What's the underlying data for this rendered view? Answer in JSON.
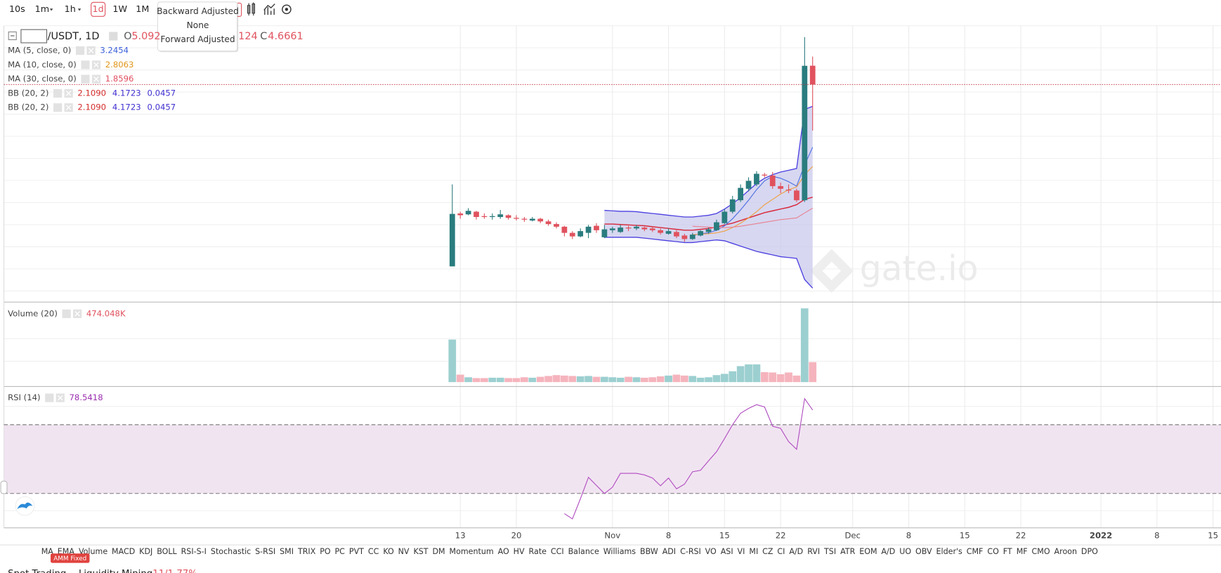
{
  "toolbar": {
    "intervals": [
      "10s",
      "1m",
      "1h",
      "1d",
      "1W",
      "1M"
    ],
    "active": "1d"
  },
  "adjust_menu": [
    "Backward Adjusted",
    "None",
    "Forward Adjusted"
  ],
  "legend": {
    "symbol": "/USDT, 1D",
    "open_label": "O",
    "open": "5.092",
    "low_fragment": "124",
    "close_label": "C",
    "close": "4.6661",
    "rows": [
      {
        "label": "MA (5, close, 0)",
        "values": [
          "3.2454"
        ],
        "colors": [
          "#3a5fd9"
        ]
      },
      {
        "label": "MA (10, close, 0)",
        "values": [
          "2.8063"
        ],
        "colors": [
          "#e0961a"
        ]
      },
      {
        "label": "MA (30, close, 0)",
        "values": [
          "1.8596"
        ],
        "colors": [
          "#e05060"
        ]
      },
      {
        "label": "BB (20, 2)",
        "values": [
          "2.1090",
          "4.1723",
          "0.0457"
        ],
        "colors": [
          "#d42a2a",
          "#4030d0",
          "#4030d0"
        ]
      },
      {
        "label": "BB (20, 2)",
        "values": [
          "2.1090",
          "4.1723",
          "0.0457"
        ],
        "colors": [
          "#d42a2a",
          "#4030d0",
          "#4030d0"
        ]
      }
    ],
    "volume": {
      "label": "Volume (20)",
      "value": "474.048K"
    },
    "rsi": {
      "label": "RSI (14)",
      "value": "78.5418"
    }
  },
  "watermark": "gate.io",
  "indicator_tabs": [
    "MA",
    "EMA",
    "Volume",
    "MACD",
    "KDJ",
    "BOLL",
    "RSI-S-I",
    "Stochastic",
    "S-RSI",
    "SMI",
    "TRIX",
    "PO",
    "PC",
    "PVT",
    "CC",
    "KO",
    "NV",
    "KST",
    "DM",
    "Momentum",
    "AO",
    "HV",
    "Rate",
    "CCI",
    "Balance",
    "Williams",
    "BBW",
    "ADI",
    "C-RSI",
    "VO",
    "ASI",
    "VI",
    "MI",
    "CZ",
    "CI",
    "A/D",
    "RVI",
    "TSI",
    "ATR",
    "EOM",
    "A/D",
    "UO",
    "OBV",
    "Elder's",
    "CMF",
    "CO",
    "FT",
    "MF",
    "CMO",
    "Aroon",
    "DPO"
  ],
  "badge": "AMM Fixed",
  "bottom_tabs": {
    "spot": "Spot Trading",
    "mining": "Liquidity Mining",
    "mining_rate": "11/1.77%"
  },
  "chart_data": {
    "type": "candlestick",
    "x": [
      "2021-10-12",
      "2021-10-13",
      "2021-10-14",
      "2021-10-15",
      "2021-10-16",
      "2021-10-17",
      "2021-10-18",
      "2021-10-19",
      "2021-10-20",
      "2021-10-21",
      "2021-10-22",
      "2021-10-23",
      "2021-10-24",
      "2021-10-25",
      "2021-10-26",
      "2021-10-27",
      "2021-10-28",
      "2021-10-29",
      "2021-10-30",
      "2021-10-31",
      "2021-11-01",
      "2021-11-02",
      "2021-11-03",
      "2021-11-04",
      "2021-11-05",
      "2021-11-06",
      "2021-11-07",
      "2021-11-08",
      "2021-11-09",
      "2021-11-10",
      "2021-11-11",
      "2021-11-12",
      "2021-11-13",
      "2021-11-14",
      "2021-11-15",
      "2021-11-16",
      "2021-11-17",
      "2021-11-18",
      "2021-11-19",
      "2021-11-20",
      "2021-11-21",
      "2021-11-22",
      "2021-11-23",
      "2021-11-24",
      "2021-11-25",
      "2021-11-26"
    ],
    "open": [
      0.54,
      1.74,
      1.72,
      1.78,
      1.68,
      1.66,
      1.66,
      1.7,
      1.64,
      1.62,
      1.58,
      1.62,
      1.56,
      1.5,
      1.44,
      1.3,
      1.22,
      1.3,
      1.46,
      1.2,
      1.36,
      1.32,
      1.42,
      1.4,
      1.42,
      1.4,
      1.36,
      1.28,
      1.32,
      1.24,
      1.16,
      1.24,
      1.32,
      1.36,
      1.52,
      1.78,
      2.04,
      2.3,
      2.4,
      2.62,
      2.6,
      2.36,
      2.28,
      2.26,
      2.04,
      5.092
    ],
    "high": [
      2.4,
      1.78,
      1.86,
      1.8,
      1.74,
      1.74,
      1.82,
      1.72,
      1.7,
      1.66,
      1.66,
      1.64,
      1.6,
      1.54,
      1.46,
      1.34,
      1.4,
      1.48,
      1.52,
      1.48,
      1.44,
      1.48,
      1.46,
      1.48,
      1.44,
      1.44,
      1.4,
      1.4,
      1.36,
      1.28,
      1.3,
      1.36,
      1.42,
      1.6,
      1.84,
      2.14,
      2.4,
      2.56,
      2.7,
      2.66,
      2.68,
      2.44,
      2.4,
      2.3,
      5.74,
      5.3
    ],
    "low": [
      0.54,
      1.62,
      1.7,
      1.6,
      1.62,
      1.6,
      1.62,
      1.6,
      1.58,
      1.55,
      1.56,
      1.52,
      1.46,
      1.4,
      1.22,
      1.16,
      1.2,
      1.18,
      1.3,
      1.18,
      1.3,
      1.3,
      1.34,
      1.36,
      1.34,
      1.32,
      1.26,
      1.26,
      1.18,
      1.1,
      1.14,
      1.22,
      1.28,
      1.34,
      1.5,
      1.74,
      2.0,
      2.24,
      2.36,
      2.56,
      2.3,
      2.2,
      2.2,
      2.0,
      2.0,
      3.62
    ],
    "close": [
      1.73,
      1.7,
      1.8,
      1.66,
      1.66,
      1.68,
      1.72,
      1.64,
      1.62,
      1.6,
      1.62,
      1.56,
      1.5,
      1.44,
      1.3,
      1.22,
      1.34,
      1.44,
      1.36,
      1.38,
      1.4,
      1.42,
      1.4,
      1.44,
      1.38,
      1.36,
      1.3,
      1.34,
      1.22,
      1.16,
      1.26,
      1.34,
      1.38,
      1.54,
      1.78,
      2.06,
      2.32,
      2.48,
      2.64,
      2.6,
      2.36,
      2.3,
      2.26,
      2.04,
      5.09,
      4.6661
    ],
    "up_color": "#2a7c7e",
    "down_color": "#e0525e",
    "xlim": [
      "2021-08-17",
      "2022-01-16"
    ],
    "xticks": [
      {
        "value": "2021-10-13",
        "label": "13"
      },
      {
        "value": "2021-10-20",
        "label": "20"
      },
      {
        "value": "2021-11-01",
        "label": "Nov"
      },
      {
        "value": "2021-11-08",
        "label": "8"
      },
      {
        "value": "2021-11-15",
        "label": "15"
      },
      {
        "value": "2021-11-22",
        "label": "22"
      },
      {
        "value": "2021-12-01",
        "label": "Dec"
      },
      {
        "value": "2021-12-08",
        "label": "8"
      },
      {
        "value": "2021-12-15",
        "label": "15"
      },
      {
        "value": "2021-12-22",
        "label": "22"
      },
      {
        "value": "2022-01-01",
        "label": "2022",
        "bold": true
      },
      {
        "value": "2022-01-08",
        "label": "8"
      },
      {
        "value": "2022-01-15",
        "label": "15"
      }
    ],
    "ylim": [
      -0.27,
      6.0
    ],
    "lines": [
      {
        "color": "#4b6ee0",
        "values": [
          null,
          null,
          null,
          null,
          null,
          null,
          null,
          null,
          null,
          null,
          null,
          null,
          null,
          null,
          null,
          null,
          null,
          null,
          null,
          null,
          null,
          null,
          null,
          null,
          null,
          null,
          null,
          null,
          null,
          null,
          1.24,
          1.28,
          1.3,
          1.36,
          1.46,
          1.62,
          1.82,
          2.04,
          2.28,
          2.48,
          2.58,
          2.54,
          2.46,
          2.36,
          2.84,
          3.2454
        ]
      },
      {
        "color": "#f0a040",
        "values": [
          null,
          null,
          null,
          null,
          null,
          null,
          null,
          null,
          null,
          null,
          null,
          null,
          null,
          null,
          null,
          null,
          null,
          null,
          null,
          null,
          null,
          null,
          null,
          null,
          null,
          null,
          null,
          null,
          null,
          null,
          1.26,
          1.27,
          1.28,
          1.3,
          1.34,
          1.42,
          1.52,
          1.64,
          1.78,
          1.94,
          2.06,
          2.18,
          2.28,
          2.34,
          2.62,
          2.8063
        ]
      },
      {
        "color": "#e88090",
        "values": [
          null,
          null,
          null,
          null,
          null,
          null,
          null,
          null,
          null,
          null,
          null,
          null,
          null,
          null,
          null,
          null,
          null,
          null,
          null,
          null,
          null,
          null,
          null,
          null,
          null,
          null,
          null,
          null,
          null,
          null,
          1.45,
          1.44,
          1.43,
          1.42,
          1.42,
          1.43,
          1.45,
          1.48,
          1.51,
          1.54,
          1.57,
          1.6,
          1.62,
          1.64,
          1.75,
          1.8596
        ]
      }
    ],
    "bb": {
      "line_color": "#4b3fe0",
      "fill": "#c9c9ec",
      "middle_color": "#d8283a",
      "upper": [
        null,
        null,
        null,
        null,
        null,
        null,
        null,
        null,
        null,
        null,
        null,
        null,
        null,
        null,
        null,
        null,
        null,
        null,
        null,
        1.81,
        1.8,
        1.79,
        1.79,
        1.78,
        1.76,
        1.74,
        1.72,
        1.7,
        1.68,
        1.66,
        1.66,
        1.68,
        1.7,
        1.74,
        1.84,
        1.96,
        2.1,
        2.26,
        2.42,
        2.54,
        2.62,
        2.68,
        2.72,
        2.76,
        4.1,
        4.1723
      ],
      "middle": [
        null,
        null,
        null,
        null,
        null,
        null,
        null,
        null,
        null,
        null,
        null,
        null,
        null,
        null,
        null,
        null,
        null,
        null,
        null,
        1.5,
        1.5,
        1.49,
        1.48,
        1.47,
        1.46,
        1.44,
        1.42,
        1.4,
        1.38,
        1.36,
        1.36,
        1.38,
        1.4,
        1.43,
        1.48,
        1.52,
        1.58,
        1.64,
        1.7,
        1.76,
        1.8,
        1.84,
        1.88,
        1.94,
        2.06,
        2.109
      ],
      "lower": [
        null,
        null,
        null,
        null,
        null,
        null,
        null,
        null,
        null,
        null,
        null,
        null,
        null,
        null,
        null,
        null,
        null,
        null,
        null,
        1.2,
        1.2,
        1.2,
        1.2,
        1.2,
        1.18,
        1.16,
        1.14,
        1.12,
        1.1,
        1.08,
        1.08,
        1.1,
        1.12,
        1.14,
        1.12,
        1.06,
        1.0,
        0.94,
        0.88,
        0.84,
        0.8,
        0.76,
        0.74,
        0.72,
        0.24,
        0.0457
      ]
    },
    "volume": {
      "values": [
        1000,
        180,
        120,
        100,
        100,
        110,
        110,
        100,
        100,
        120,
        110,
        130,
        150,
        170,
        160,
        150,
        140,
        150,
        130,
        130,
        120,
        110,
        130,
        120,
        110,
        120,
        140,
        160,
        180,
        160,
        150,
        110,
        120,
        170,
        200,
        260,
        380,
        420,
        420,
        240,
        230,
        190,
        230,
        160,
        1730,
        474.048
      ],
      "ylim": [
        0,
        1820
      ],
      "up_color": "#9ccfd0",
      "down_color": "#f5b4bd"
    },
    "rsi": {
      "values": [
        null,
        null,
        null,
        null,
        null,
        null,
        null,
        null,
        null,
        null,
        null,
        null,
        null,
        null,
        18.3,
        15.2,
        27,
        39.4,
        34.7,
        30,
        33.6,
        41.7,
        41.7,
        41.7,
        40.8,
        39,
        34.5,
        39,
        32.7,
        35.4,
        42.6,
        43.5,
        49,
        54.3,
        62,
        70,
        76.7,
        79.5,
        81.7,
        80.3,
        69.1,
        67.9,
        60.2,
        55.7,
        85.2,
        78.5418
      ],
      "ylim": [
        10,
        92
      ],
      "levels": [
        30,
        70
      ],
      "color": "#b04cc0",
      "band_color": "#f1e4f1"
    }
  }
}
